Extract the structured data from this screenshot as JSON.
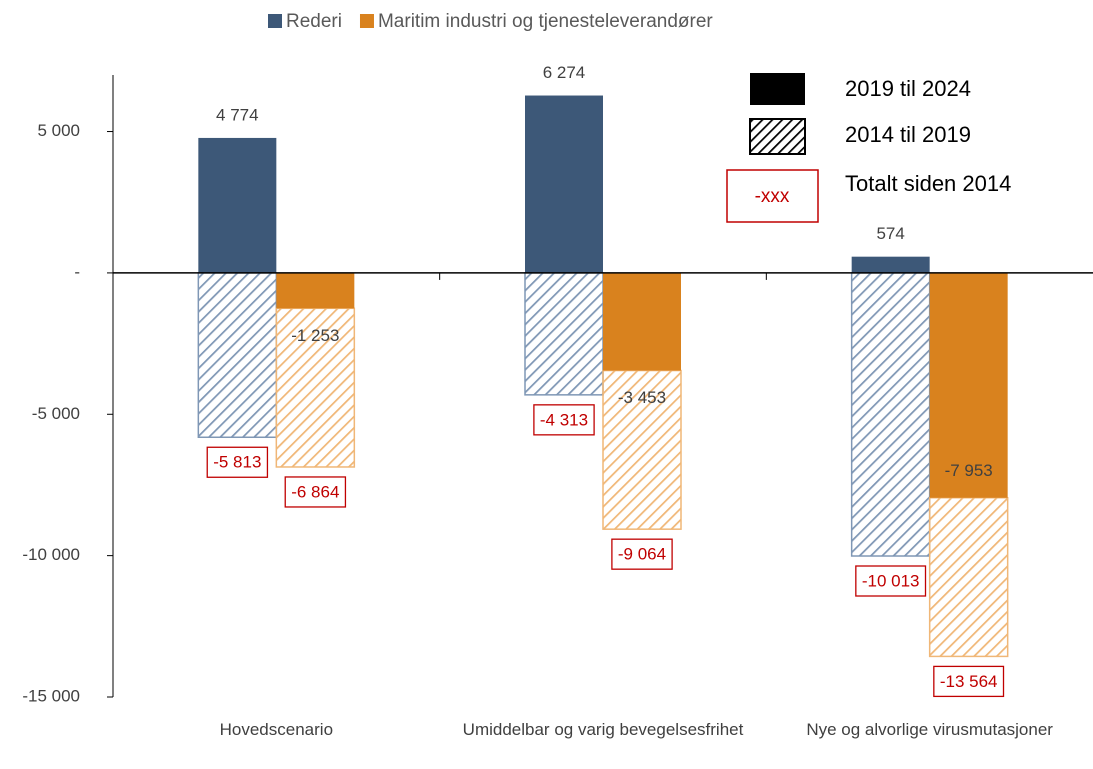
{
  "chart_data": {
    "type": "bar",
    "categories": [
      "Hovedscenario",
      "Umiddelbar og varig bevegelsesfrihet",
      "Nye og alvorlige virusmutasjoner"
    ],
    "series": [
      {
        "name": "Rederi",
        "color": "#3d5878",
        "values": [
          4774,
          6274,
          574
        ],
        "value_labels": [
          "4 774",
          "6 274",
          "574"
        ],
        "totals": [
          -5813,
          -4313,
          -10013
        ],
        "total_labels": [
          "-5 813",
          "-4 313",
          "-10 013"
        ]
      },
      {
        "name": "Maritim industri og tjenesteleverandører",
        "color": "#d9821e",
        "values": [
          -1253,
          -3453,
          -7953
        ],
        "value_labels": [
          "-1 253",
          "-3 453",
          "-7 953"
        ],
        "totals": [
          -6864,
          -9064,
          -13564
        ],
        "total_labels": [
          "-6 864",
          "-9 064",
          "-13 564"
        ]
      }
    ],
    "period_legend": {
      "solid": "2019 til 2024",
      "hatched": "2014 til 2019",
      "box": "-xxx",
      "box_label": "Totalt siden 2014"
    },
    "ylim": [
      -15000,
      7000
    ],
    "yticks": [
      {
        "value": 5000,
        "label": "5 000"
      },
      {
        "value": 0,
        "label": "-"
      },
      {
        "value": -5000,
        "label": "-5 000"
      },
      {
        "value": -10000,
        "label": "-10 000"
      },
      {
        "value": -15000,
        "label": "-15 000"
      }
    ]
  }
}
